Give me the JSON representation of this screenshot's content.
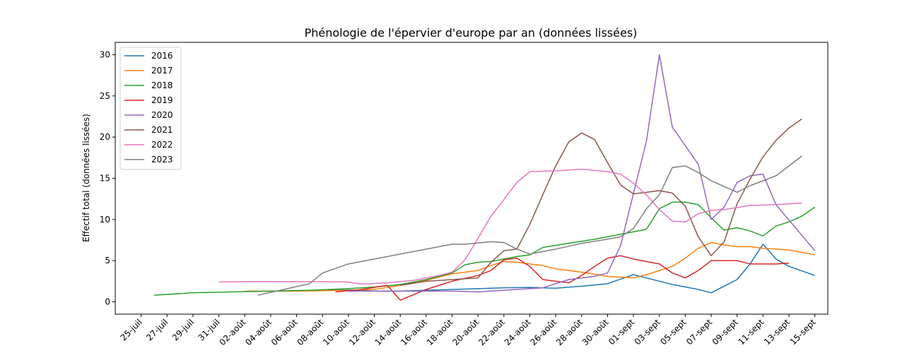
{
  "chart_data": {
    "type": "line",
    "title": "Phénologie de l'épervier d'europe par an (données lissées)",
    "xlabel": "",
    "ylabel": "Effectif total (données lissées)",
    "ylim": [
      -1.5,
      31.5
    ],
    "yticks": [
      0,
      5,
      10,
      15,
      20,
      25,
      30
    ],
    "xlim": [
      "2000-07-23",
      "2000-09-16"
    ],
    "xticks": [
      {
        "date": "2000-07-25",
        "label": "25-juil"
      },
      {
        "date": "2000-07-27",
        "label": "27-juil"
      },
      {
        "date": "2000-07-29",
        "label": "29-juil"
      },
      {
        "date": "2000-07-31",
        "label": "31-juil"
      },
      {
        "date": "2000-08-02",
        "label": "02-août"
      },
      {
        "date": "2000-08-04",
        "label": "04-août"
      },
      {
        "date": "2000-08-06",
        "label": "06-août"
      },
      {
        "date": "2000-08-08",
        "label": "08-août"
      },
      {
        "date": "2000-08-10",
        "label": "10-août"
      },
      {
        "date": "2000-08-12",
        "label": "12-août"
      },
      {
        "date": "2000-08-14",
        "label": "14-août"
      },
      {
        "date": "2000-08-16",
        "label": "16-août"
      },
      {
        "date": "2000-08-18",
        "label": "18-août"
      },
      {
        "date": "2000-08-20",
        "label": "20-août"
      },
      {
        "date": "2000-08-22",
        "label": "22-août"
      },
      {
        "date": "2000-08-24",
        "label": "24-août"
      },
      {
        "date": "2000-08-26",
        "label": "26-août"
      },
      {
        "date": "2000-08-28",
        "label": "28-août"
      },
      {
        "date": "2000-08-30",
        "label": "30-août"
      },
      {
        "date": "2000-09-01",
        "label": "01-sept"
      },
      {
        "date": "2000-09-03",
        "label": "03-sept"
      },
      {
        "date": "2000-09-05",
        "label": "05-sept"
      },
      {
        "date": "2000-09-07",
        "label": "07-sept"
      },
      {
        "date": "2000-09-09",
        "label": "09-sept"
      },
      {
        "date": "2000-09-11",
        "label": "11-sept"
      },
      {
        "date": "2000-09-13",
        "label": "13-sept"
      },
      {
        "date": "2000-09-15",
        "label": "15-sept"
      }
    ],
    "legend_position": "upper-left",
    "grid": false,
    "series": [
      {
        "name": "2016",
        "color": "#1f77b4",
        "points": [
          [
            "2000-08-04",
            1.3
          ],
          [
            "2000-08-06",
            1.35
          ],
          [
            "2000-08-08",
            1.4
          ],
          [
            "2000-08-10",
            1.45
          ],
          [
            "2000-08-12",
            1.3
          ],
          [
            "2000-08-14",
            1.3
          ],
          [
            "2000-08-16",
            1.4
          ],
          [
            "2000-08-18",
            1.5
          ],
          [
            "2000-08-20",
            1.6
          ],
          [
            "2000-08-22",
            1.7
          ],
          [
            "2000-08-24",
            1.75
          ],
          [
            "2000-08-26",
            1.65
          ],
          [
            "2000-08-28",
            1.9
          ],
          [
            "2000-08-30",
            2.2
          ],
          [
            "2000-09-01",
            3.3
          ],
          [
            "2000-09-02",
            2.9
          ],
          [
            "2000-09-03",
            2.5
          ],
          [
            "2000-09-04",
            2.1
          ],
          [
            "2000-09-05",
            1.8
          ],
          [
            "2000-09-06",
            1.5
          ],
          [
            "2000-09-07",
            1.1
          ],
          [
            "2000-09-08",
            1.9
          ],
          [
            "2000-09-09",
            2.7
          ],
          [
            "2000-09-10",
            4.6
          ],
          [
            "2000-09-11",
            7.0
          ],
          [
            "2000-09-12",
            5.2
          ],
          [
            "2000-09-13",
            4.3
          ],
          [
            "2000-09-15",
            3.2
          ]
        ]
      },
      {
        "name": "2017",
        "color": "#ff7f0e",
        "points": [
          [
            "2000-08-02",
            1.3
          ],
          [
            "2000-08-06",
            1.3
          ],
          [
            "2000-08-10",
            1.4
          ],
          [
            "2000-08-12",
            1.5
          ],
          [
            "2000-08-14",
            2.0
          ],
          [
            "2000-08-16",
            2.6
          ],
          [
            "2000-08-18",
            3.4
          ],
          [
            "2000-08-20",
            3.8
          ],
          [
            "2000-08-21",
            4.4
          ],
          [
            "2000-08-22",
            4.9
          ],
          [
            "2000-08-23",
            4.8
          ],
          [
            "2000-08-24",
            4.6
          ],
          [
            "2000-08-25",
            4.4
          ],
          [
            "2000-08-26",
            4.0
          ],
          [
            "2000-08-28",
            3.6
          ],
          [
            "2000-08-30",
            3.1
          ],
          [
            "2000-09-01",
            2.9
          ],
          [
            "2000-09-02",
            3.3
          ],
          [
            "2000-09-03",
            3.8
          ],
          [
            "2000-09-04",
            4.3
          ],
          [
            "2000-09-05",
            5.3
          ],
          [
            "2000-09-06",
            6.5
          ],
          [
            "2000-09-07",
            7.2
          ],
          [
            "2000-09-08",
            6.9
          ],
          [
            "2000-09-09",
            6.7
          ],
          [
            "2000-09-10",
            6.7
          ],
          [
            "2000-09-11",
            6.5
          ],
          [
            "2000-09-13",
            6.3
          ],
          [
            "2000-09-15",
            5.7
          ]
        ]
      },
      {
        "name": "2018",
        "color": "#2ca02c",
        "points": [
          [
            "2000-07-26",
            0.8
          ],
          [
            "2000-07-29",
            1.1
          ],
          [
            "2000-08-01",
            1.2
          ],
          [
            "2000-08-04",
            1.3
          ],
          [
            "2000-08-07",
            1.4
          ],
          [
            "2000-08-10",
            1.6
          ],
          [
            "2000-08-12",
            1.8
          ],
          [
            "2000-08-14",
            2.1
          ],
          [
            "2000-08-16",
            2.7
          ],
          [
            "2000-08-18",
            3.5
          ],
          [
            "2000-08-19",
            4.5
          ],
          [
            "2000-08-20",
            4.8
          ],
          [
            "2000-08-21",
            4.9
          ],
          [
            "2000-08-22",
            5.2
          ],
          [
            "2000-08-23",
            5.5
          ],
          [
            "2000-08-24",
            5.7
          ],
          [
            "2000-08-25",
            6.6
          ],
          [
            "2000-08-27",
            7.1
          ],
          [
            "2000-08-29",
            7.6
          ],
          [
            "2000-08-31",
            8.2
          ],
          [
            "2000-09-01",
            8.5
          ],
          [
            "2000-09-02",
            8.8
          ],
          [
            "2000-09-03",
            11.3
          ],
          [
            "2000-09-04",
            12.1
          ],
          [
            "2000-09-05",
            12.1
          ],
          [
            "2000-09-06",
            11.8
          ],
          [
            "2000-09-07",
            10.2
          ],
          [
            "2000-09-08",
            8.7
          ],
          [
            "2000-09-09",
            9.0
          ],
          [
            "2000-09-10",
            8.6
          ],
          [
            "2000-09-11",
            8.0
          ],
          [
            "2000-09-12",
            9.2
          ],
          [
            "2000-09-13",
            9.7
          ],
          [
            "2000-09-14",
            10.4
          ],
          [
            "2000-09-15",
            11.5
          ]
        ]
      },
      {
        "name": "2019",
        "color": "#d62728",
        "points": [
          [
            "2000-08-09",
            1.2
          ],
          [
            "2000-08-11",
            1.5
          ],
          [
            "2000-08-13",
            2.0
          ],
          [
            "2000-08-14",
            0.2
          ],
          [
            "2000-08-16",
            1.5
          ],
          [
            "2000-08-18",
            2.5
          ],
          [
            "2000-08-20",
            3.2
          ],
          [
            "2000-08-21",
            3.8
          ],
          [
            "2000-08-22",
            5.1
          ],
          [
            "2000-08-23",
            5.3
          ],
          [
            "2000-08-24",
            4.3
          ],
          [
            "2000-08-25",
            2.7
          ],
          [
            "2000-08-26",
            2.5
          ],
          [
            "2000-08-27",
            2.3
          ],
          [
            "2000-08-28",
            3.2
          ],
          [
            "2000-08-29",
            4.3
          ],
          [
            "2000-08-30",
            5.3
          ],
          [
            "2000-08-31",
            5.6
          ],
          [
            "2000-09-01",
            5.2
          ],
          [
            "2000-09-02",
            4.9
          ],
          [
            "2000-09-03",
            4.6
          ],
          [
            "2000-09-04",
            3.5
          ],
          [
            "2000-09-05",
            2.9
          ],
          [
            "2000-09-06",
            3.8
          ],
          [
            "2000-09-07",
            5.0
          ],
          [
            "2000-09-08",
            5.0
          ],
          [
            "2000-09-09",
            5.0
          ],
          [
            "2000-09-10",
            4.6
          ],
          [
            "2000-09-11",
            4.6
          ],
          [
            "2000-09-12",
            4.6
          ],
          [
            "2000-09-13",
            4.7
          ]
        ]
      },
      {
        "name": "2020",
        "color": "#9467bd",
        "points": [
          [
            "2000-08-10",
            1.3
          ],
          [
            "2000-08-14",
            1.3
          ],
          [
            "2000-08-18",
            1.3
          ],
          [
            "2000-08-20",
            1.2
          ],
          [
            "2000-08-22",
            1.4
          ],
          [
            "2000-08-25",
            1.7
          ],
          [
            "2000-08-27",
            2.7
          ],
          [
            "2000-08-29",
            3.1
          ],
          [
            "2000-08-30",
            3.5
          ],
          [
            "2000-08-31",
            6.8
          ],
          [
            "2000-09-02",
            19.5
          ],
          [
            "2000-09-03",
            30.0
          ],
          [
            "2000-09-04",
            21.2
          ],
          [
            "2000-09-06",
            16.7
          ],
          [
            "2000-09-07",
            10.0
          ],
          [
            "2000-09-08",
            11.5
          ],
          [
            "2000-09-09",
            14.5
          ],
          [
            "2000-09-10",
            15.3
          ],
          [
            "2000-09-11",
            15.5
          ],
          [
            "2000-09-12",
            11.8
          ],
          [
            "2000-09-15",
            6.2
          ]
        ]
      },
      {
        "name": "2021",
        "color": "#8c564b",
        "points": [
          [
            "2000-08-14",
            2.0
          ],
          [
            "2000-08-16",
            2.5
          ],
          [
            "2000-08-18",
            2.7
          ],
          [
            "2000-08-20",
            2.9
          ],
          [
            "2000-08-21",
            4.8
          ],
          [
            "2000-08-22",
            6.2
          ],
          [
            "2000-08-23",
            6.4
          ],
          [
            "2000-08-24",
            9.4
          ],
          [
            "2000-08-25",
            13.0
          ],
          [
            "2000-08-26",
            16.5
          ],
          [
            "2000-08-27",
            19.4
          ],
          [
            "2000-08-28",
            20.5
          ],
          [
            "2000-08-29",
            19.7
          ],
          [
            "2000-08-30",
            16.9
          ],
          [
            "2000-08-31",
            14.2
          ],
          [
            "2000-09-01",
            13.1
          ],
          [
            "2000-09-02",
            13.3
          ],
          [
            "2000-09-03",
            13.5
          ],
          [
            "2000-09-04",
            13.2
          ],
          [
            "2000-09-05",
            11.6
          ],
          [
            "2000-09-06",
            7.9
          ],
          [
            "2000-09-07",
            5.6
          ],
          [
            "2000-09-08",
            7.3
          ],
          [
            "2000-09-09",
            11.9
          ],
          [
            "2000-09-10",
            14.9
          ],
          [
            "2000-09-11",
            17.6
          ],
          [
            "2000-09-12",
            19.6
          ],
          [
            "2000-09-13",
            21.1
          ],
          [
            "2000-09-14",
            22.2
          ]
        ]
      },
      {
        "name": "2022",
        "color": "#e377c2",
        "points": [
          [
            "2000-07-31",
            2.4
          ],
          [
            "2000-08-02",
            2.45
          ],
          [
            "2000-08-04",
            2.45
          ],
          [
            "2000-08-06",
            2.45
          ],
          [
            "2000-08-08",
            2.45
          ],
          [
            "2000-08-10",
            2.4
          ],
          [
            "2000-08-11",
            2.15
          ],
          [
            "2000-08-13",
            2.3
          ],
          [
            "2000-08-15",
            2.6
          ],
          [
            "2000-08-17",
            3.2
          ],
          [
            "2000-08-18",
            3.6
          ],
          [
            "2000-08-19",
            5.1
          ],
          [
            "2000-08-20",
            7.7
          ],
          [
            "2000-08-21",
            10.4
          ],
          [
            "2000-08-22",
            12.4
          ],
          [
            "2000-08-23",
            14.5
          ],
          [
            "2000-08-24",
            15.8
          ],
          [
            "2000-08-26",
            15.9
          ],
          [
            "2000-08-28",
            16.1
          ],
          [
            "2000-08-30",
            15.8
          ],
          [
            "2000-08-31",
            15.5
          ],
          [
            "2000-09-01",
            14.4
          ],
          [
            "2000-09-02",
            13.0
          ],
          [
            "2000-09-03",
            11.2
          ],
          [
            "2000-09-04",
            9.8
          ],
          [
            "2000-09-05",
            9.7
          ],
          [
            "2000-09-06",
            10.7
          ],
          [
            "2000-09-07",
            11.1
          ],
          [
            "2000-09-08",
            11.2
          ],
          [
            "2000-09-10",
            11.7
          ],
          [
            "2000-09-12",
            11.8
          ],
          [
            "2000-09-14",
            12.0
          ]
        ]
      },
      {
        "name": "2023",
        "color": "#7f7f7f",
        "points": [
          [
            "2000-08-03",
            0.8
          ],
          [
            "2000-08-05",
            1.5
          ],
          [
            "2000-08-07",
            2.2
          ],
          [
            "2000-08-08",
            3.5
          ],
          [
            "2000-08-10",
            4.6
          ],
          [
            "2000-08-12",
            5.2
          ],
          [
            "2000-08-14",
            5.8
          ],
          [
            "2000-08-16",
            6.4
          ],
          [
            "2000-08-18",
            7.0
          ],
          [
            "2000-08-19",
            7.0
          ],
          [
            "2000-08-21",
            7.3
          ],
          [
            "2000-08-22",
            7.2
          ],
          [
            "2000-08-23",
            6.4
          ],
          [
            "2000-08-24",
            5.8
          ],
          [
            "2000-08-26",
            6.4
          ],
          [
            "2000-08-28",
            7.1
          ],
          [
            "2000-08-30",
            7.6
          ],
          [
            "2000-08-31",
            7.9
          ],
          [
            "2000-09-01",
            8.9
          ],
          [
            "2000-09-02",
            11.3
          ],
          [
            "2000-09-03",
            13.0
          ],
          [
            "2000-09-04",
            16.3
          ],
          [
            "2000-09-05",
            16.5
          ],
          [
            "2000-09-06",
            15.7
          ],
          [
            "2000-09-07",
            14.7
          ],
          [
            "2000-09-08",
            14.0
          ],
          [
            "2000-09-09",
            13.3
          ],
          [
            "2000-09-10",
            14.1
          ],
          [
            "2000-09-11",
            14.7
          ],
          [
            "2000-09-12",
            15.3
          ],
          [
            "2000-09-14",
            17.7
          ]
        ]
      }
    ]
  }
}
